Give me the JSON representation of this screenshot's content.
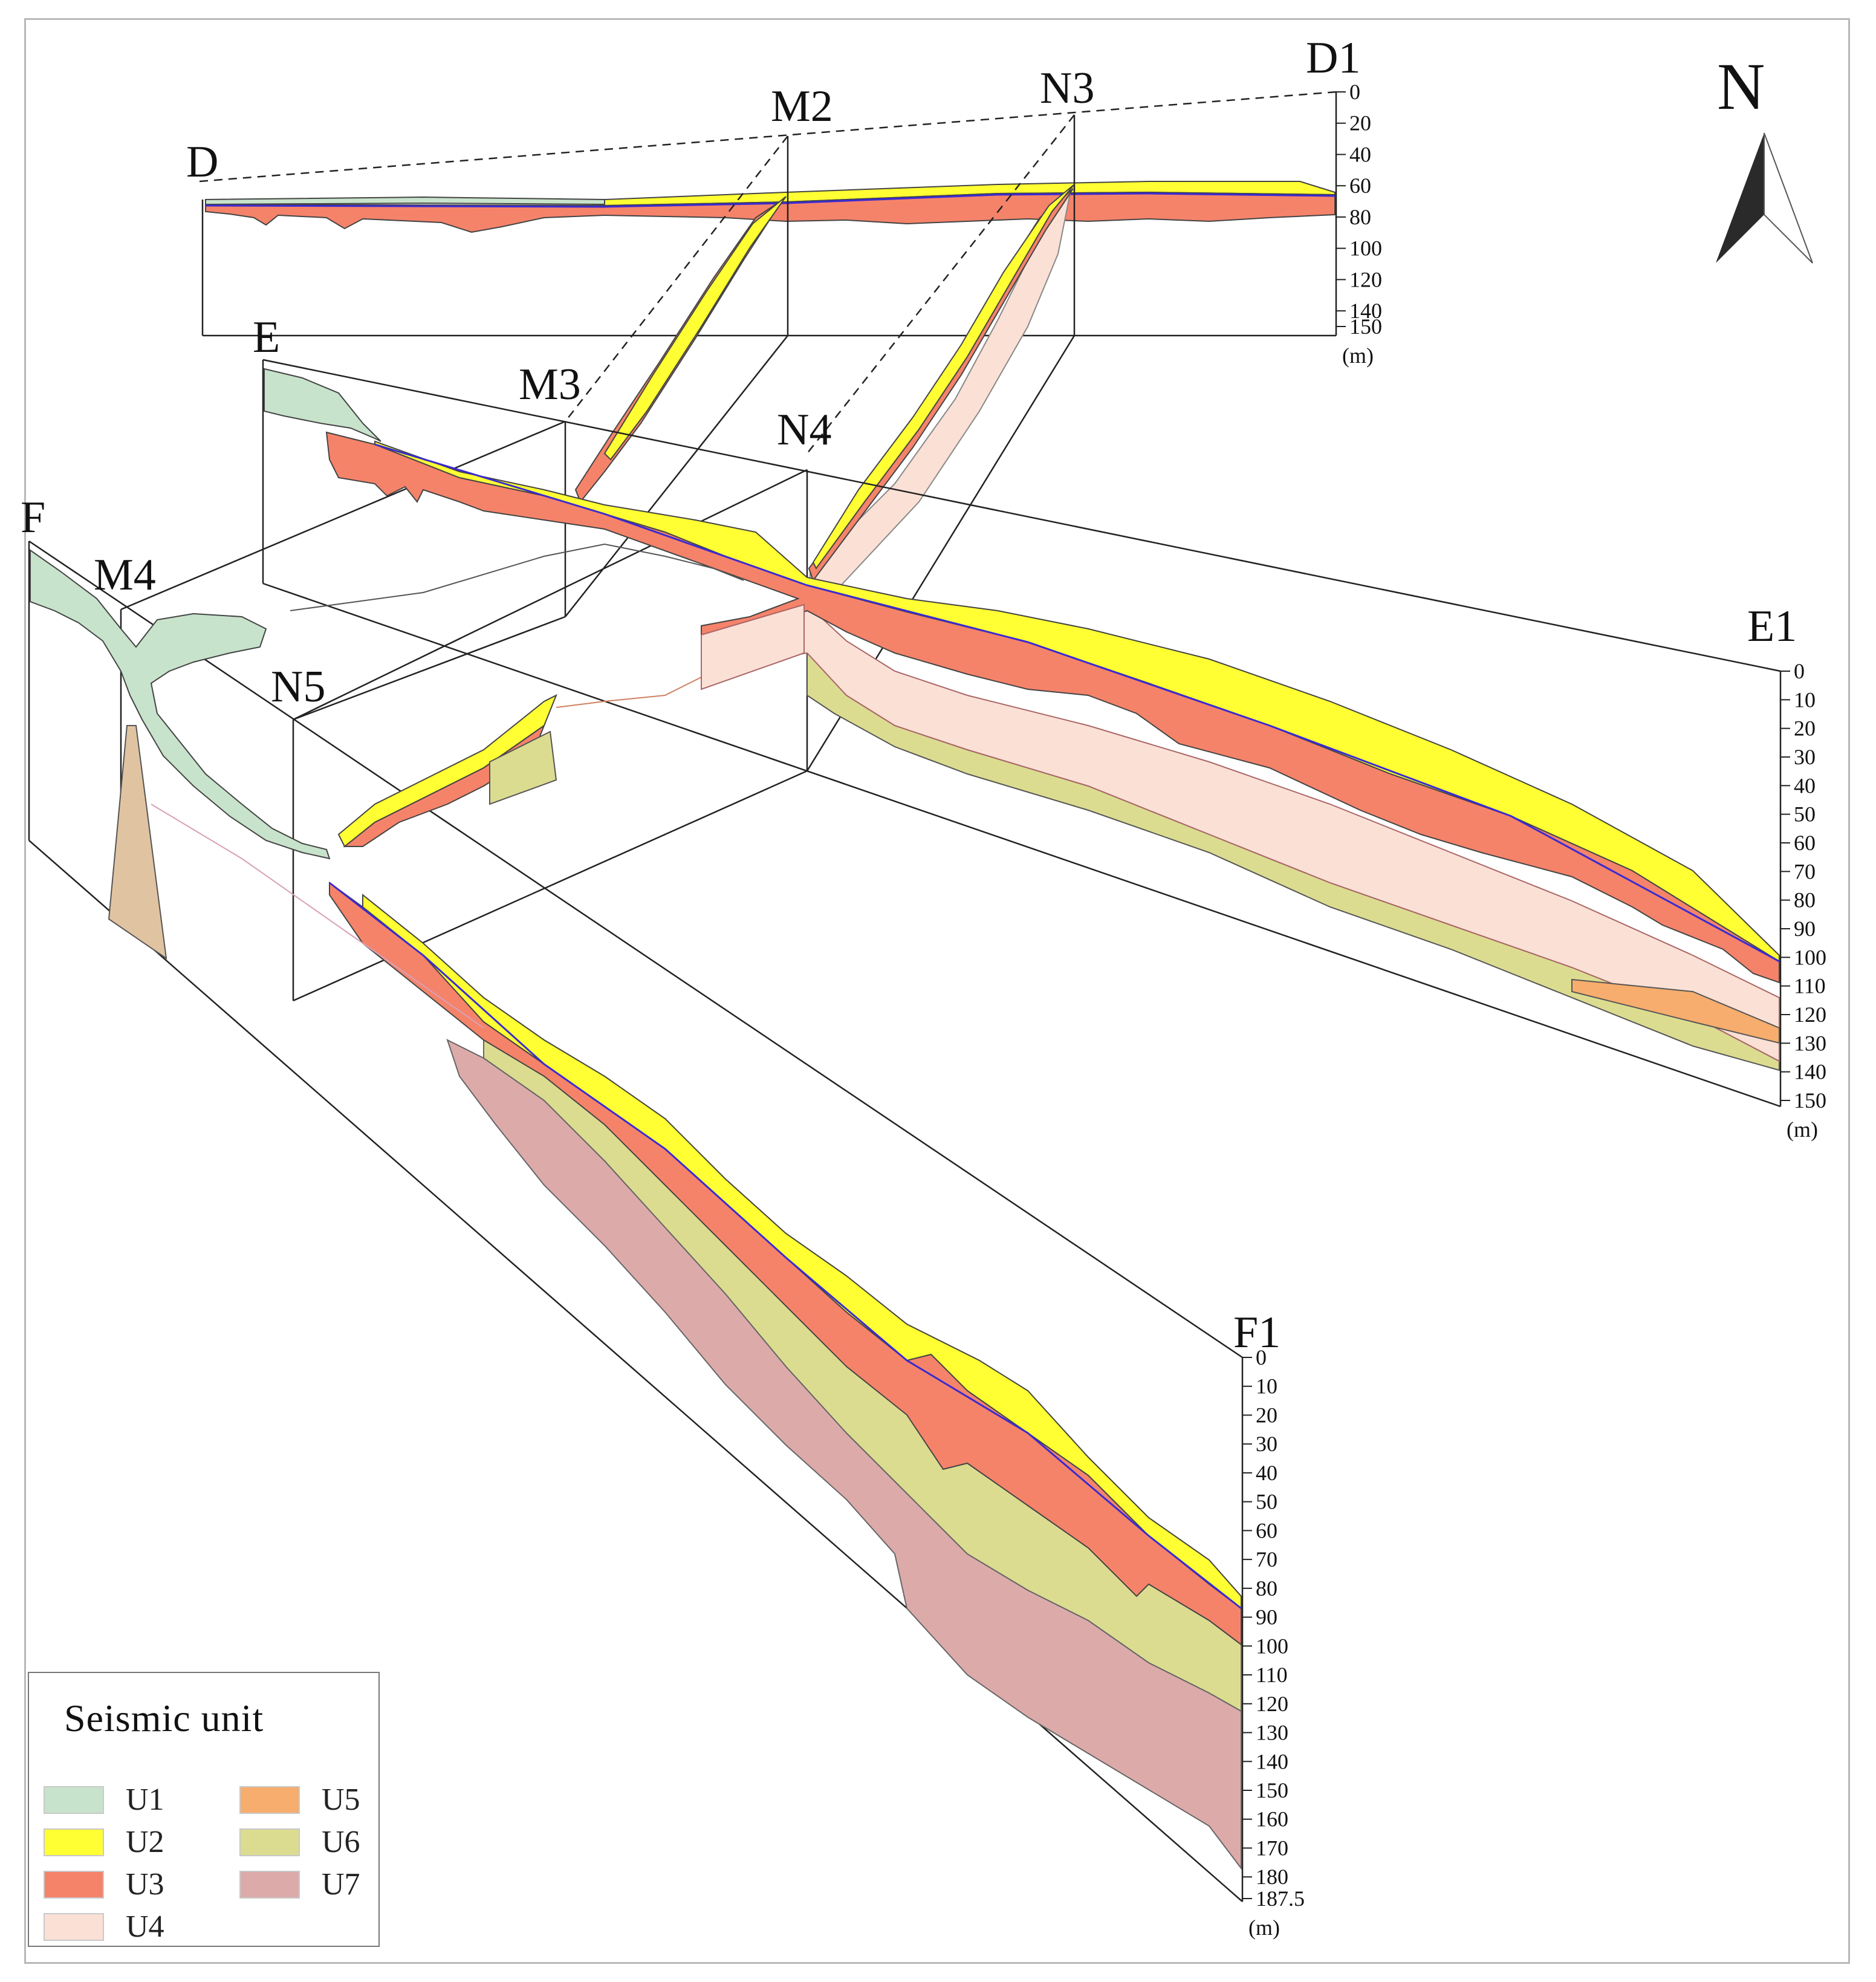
{
  "profiles": {
    "D": {
      "start": "D",
      "end": "D1"
    },
    "E": {
      "start": "E",
      "end": "E1"
    },
    "F": {
      "start": "F",
      "end": "F1"
    }
  },
  "tie_lines": [
    "M2",
    "M3",
    "M4",
    "N3",
    "N4",
    "N5"
  ],
  "depth_axes": {
    "D1": {
      "ticks": [
        "0",
        "20",
        "40",
        "60",
        "80",
        "100",
        "120",
        "140",
        "150"
      ],
      "unit": "(m)"
    },
    "E1": {
      "ticks": [
        "0",
        "10",
        "20",
        "30",
        "40",
        "50",
        "60",
        "70",
        "80",
        "90",
        "100",
        "110",
        "120",
        "130",
        "140",
        "150"
      ],
      "unit": "(m)"
    },
    "F1": {
      "ticks": [
        "0",
        "10",
        "20",
        "30",
        "40",
        "50",
        "60",
        "70",
        "80",
        "90",
        "100",
        "110",
        "120",
        "130",
        "140",
        "150",
        "160",
        "170",
        "180",
        "187.5"
      ],
      "unit": "(m)"
    }
  },
  "north_arrow": {
    "label": "N"
  },
  "legend": {
    "title": "Seismic unit",
    "units": [
      {
        "name": "U1",
        "color": "#c8e3cb"
      },
      {
        "name": "U2",
        "color": "#ffff33"
      },
      {
        "name": "U3",
        "color": "#f5836a"
      },
      {
        "name": "U4",
        "color": "#fbe0d6"
      },
      {
        "name": "U5",
        "color": "#f7ad6d"
      },
      {
        "name": "U6",
        "color": "#dcdc91"
      },
      {
        "name": "U7",
        "color": "#ddaaaa"
      }
    ]
  }
}
